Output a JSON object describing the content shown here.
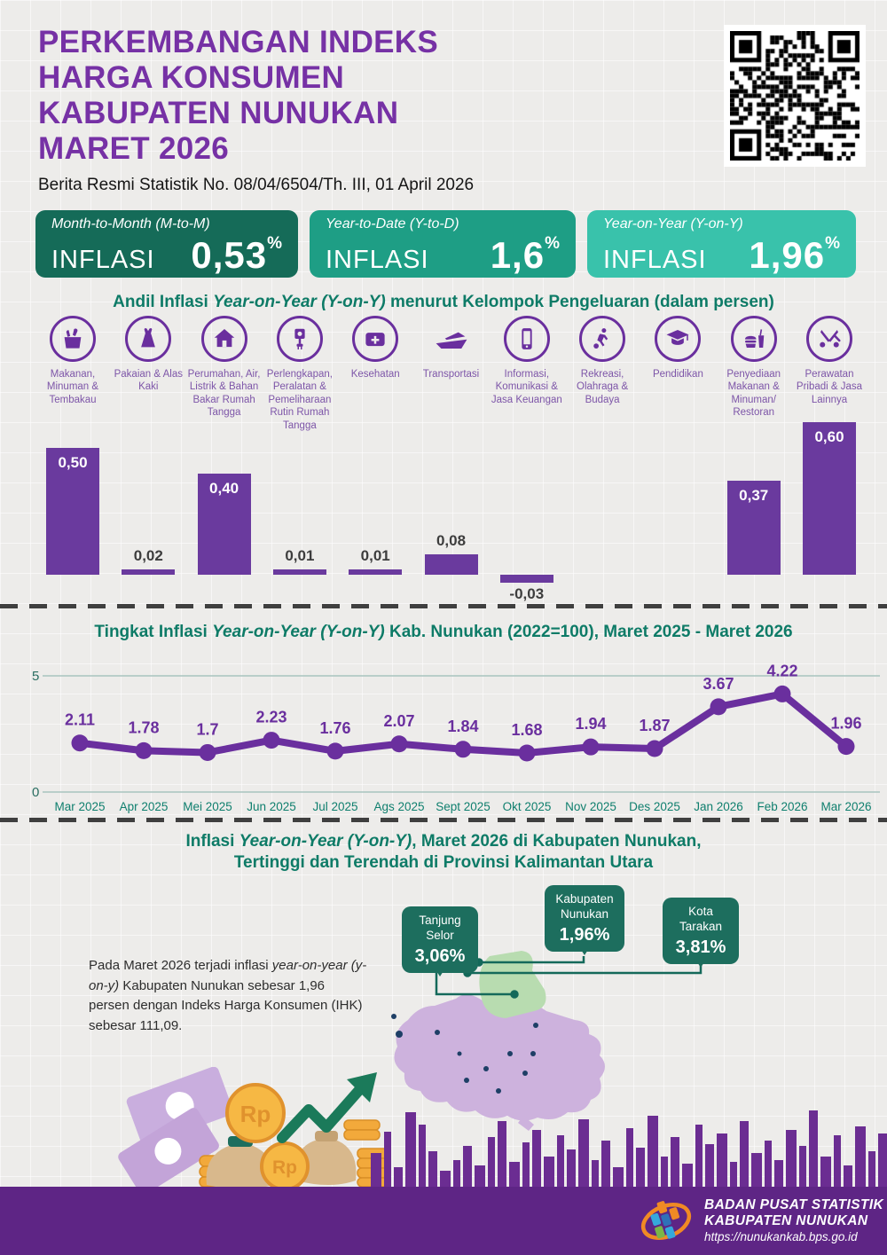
{
  "header": {
    "title_lines": [
      "PERKEMBANGAN INDEKS",
      "HARGA KONSUMEN",
      "KABUPATEN NUNUKAN",
      "MARET 2026"
    ],
    "subtitle": "Berita Resmi Statistik No. 08/04/6504/Th. III, 01 April 2026"
  },
  "stat_cards": [
    {
      "period": "Month-to-Month (M-to-M)",
      "label": "INFLASI",
      "value": "0,53",
      "unit": "%",
      "color": "#156b58"
    },
    {
      "period": "Year-to-Date (Y-to-D)",
      "label": "INFLASI",
      "value": "1,6",
      "unit": "%",
      "color": "#1e9e85"
    },
    {
      "period": "Year-on-Year (Y-on-Y)",
      "label": "INFLASI",
      "value": "1,96",
      "unit": "%",
      "color": "#39c2ab"
    }
  ],
  "chart_data": [
    {
      "type": "bar",
      "title_prefix": "Andil Inflasi ",
      "title_italic": "Year-on-Year (Y-on-Y)",
      "title_suffix": " menurut Kelompok Pengeluaran (dalam persen)",
      "categories": [
        "Makanan, Minuman & Tembakau",
        "Pakaian & Alas Kaki",
        "Perumahan, Air, Listrik & Bahan Bakar Rumah Tangga",
        "Perlengkapan, Peralatan & Pemeliharaan Rutin Rumah Tangga",
        "Kesehatan",
        "Transportasi",
        "Informasi, Komunikasi & Jasa Keuangan",
        "Rekreasi, Olahraga & Budaya",
        "Pendidikan",
        "Penyediaan Makanan & Minuman/ Restoran",
        "Perawatan Pribadi & Jasa Lainnya"
      ],
      "icons": [
        "food-basket-icon",
        "dress-icon",
        "house-icon",
        "appliance-plug-icon",
        "medical-kit-icon",
        "ship-icon",
        "smartphone-icon",
        "sports-icon",
        "graduation-cap-icon",
        "food-drink-icon",
        "scissors-icon"
      ],
      "values": [
        0.5,
        0.02,
        0.4,
        0.01,
        0.01,
        0.08,
        -0.03,
        0,
        0,
        0.37,
        0.6
      ],
      "value_labels": [
        "0,50",
        "0,02",
        "0,40",
        "0,01",
        "0,01",
        "0,08",
        "-0,03",
        "",
        "",
        "0,37",
        "0,60"
      ],
      "bar_color": "#6a3a9e"
    },
    {
      "type": "line",
      "title_prefix": "Tingkat Inflasi  ",
      "title_italic": "Year-on-Year (Y-on-Y)",
      "title_suffix": " Kab. Nunukan (2022=100), Maret 2025 - Maret 2026",
      "categories": [
        "Mar 2025",
        "Apr 2025",
        "Mei 2025",
        "Jun 2025",
        "Jul 2025",
        "Ags 2025",
        "Sept 2025",
        "Okt 2025",
        "Nov 2025",
        "Des 2025",
        "Jan 2026",
        "Feb 2026",
        "Mar 2026"
      ],
      "values": [
        2.11,
        1.78,
        1.7,
        2.23,
        1.76,
        2.07,
        1.84,
        1.68,
        1.94,
        1.87,
        3.67,
        4.22,
        1.96
      ],
      "value_labels": [
        "2.11",
        "1.78",
        "1.7",
        "2.23",
        "1.76",
        "2.07",
        "1.84",
        "1.68",
        "1.94",
        "1.87",
        "3.67",
        "4.22",
        "1.96"
      ],
      "ylim": [
        0,
        5
      ],
      "yticks": [
        "0",
        "5"
      ],
      "grid": true,
      "line_color": "#6a2f9e"
    }
  ],
  "map_section": {
    "title1_prefix": "Inflasi ",
    "title1_italic": "Year-on-Year (Y-on-Y)",
    "title1_suffix": ", Maret 2026 di Kabupaten Nunukan,",
    "title2": "Tertinggi dan Terendah di Provinsi Kalimantan Utara",
    "callouts": [
      {
        "name": "Tanjung Selor",
        "value": "3,06%"
      },
      {
        "name": "Kabupaten Nunukan",
        "value": "1,96%"
      },
      {
        "name": "Kota Tarakan",
        "value": "3,81%"
      }
    ],
    "note_p1": "Pada Maret 2026 terjadi inflasi ",
    "note_italic": "year-on-year (y-on-y)",
    "note_p2": " Kabupaten Nunukan sebesar 1,96 persen dengan Indeks Harga Konsumen (IHK) sebesar 111,09."
  },
  "illustration": {
    "coin_label": "Rp"
  },
  "footer": {
    "org_line1": "BADAN PUSAT STATISTIK",
    "org_line2": "KABUPATEN NUNUKAN",
    "url": "https://nunukankab.bps.go.id"
  },
  "colors": {
    "title_purple": "#7631a5",
    "bar_purple": "#6a3a9e",
    "teal_heading": "#0e7b67",
    "callout_teal": "#1d6e5e",
    "footer_purple": "#5e2585",
    "map_island": "#cdb2dd",
    "map_north_region": "#b8dcb0",
    "card_dark": "#156b58",
    "card_mid": "#1e9e85",
    "card_light": "#39c2ab"
  }
}
